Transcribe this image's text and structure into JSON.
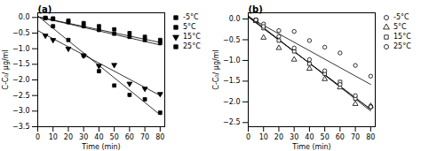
{
  "chart_data": [
    {
      "type": "scatter",
      "title": "(a)",
      "x_label": "Time (min)",
      "y_label": "C-C₀/ μg/ml",
      "x": [
        5,
        10,
        20,
        30,
        40,
        50,
        60,
        70,
        80
      ],
      "series": [
        {
          "name": "-5°C",
          "color": "black",
          "marker": "square",
          "values": [
            -0.02,
            -0.03,
            -0.1,
            -0.18,
            -0.28,
            -0.38,
            -0.5,
            -0.62,
            -0.72
          ],
          "fit": {
            "x": [
              0,
              80
            ],
            "values": [
              0.02,
              -0.8
            ]
          }
        },
        {
          "name": "5°C",
          "color": "black",
          "marker": "square",
          "values": [
            -0.01,
            -0.05,
            -0.15,
            -0.28,
            -0.4,
            -0.52,
            -0.62,
            -0.72,
            -0.82
          ],
          "fit": {
            "x": [
              0,
              80
            ],
            "values": [
              0.02,
              -0.88
            ]
          }
        },
        {
          "name": "15°C",
          "color": "black",
          "marker": "triangle-down",
          "values": [
            -0.58,
            -0.72,
            -1.0,
            -1.22,
            -1.55,
            -1.52,
            -2.12,
            -2.28,
            -2.45
          ],
          "fit": {
            "x": [
              0,
              80
            ],
            "values": [
              -0.42,
              -2.5
            ]
          }
        },
        {
          "name": "25°C",
          "color": "black",
          "marker": "square",
          "values": [
            -0.02,
            -0.28,
            -0.72,
            -1.22,
            -1.72,
            -2.18,
            -2.48,
            -2.62,
            -3.05
          ],
          "fit": {
            "x": [
              0,
              80
            ],
            "values": [
              0.05,
              -3.12
            ]
          }
        }
      ],
      "xlim": [
        0,
        83
      ],
      "xticks": [
        0,
        10,
        20,
        30,
        40,
        50,
        60,
        70,
        80
      ],
      "ylim": [
        -3.5,
        0.15
      ],
      "yticks": [
        {
          "value": 0.0,
          "label": "0.0"
        },
        {
          "value": -0.5,
          "label": "−0.5"
        },
        {
          "value": -1.0,
          "label": "−1.0"
        },
        {
          "value": -1.5,
          "label": "−1.5"
        },
        {
          "value": -2.0,
          "label": "−2.0"
        },
        {
          "value": -2.5,
          "label": "−2.5"
        },
        {
          "value": -3.0,
          "label": "−3.0"
        },
        {
          "value": -3.5,
          "label": "−3.5"
        }
      ],
      "grid": false,
      "legend": "upper right"
    },
    {
      "type": "scatter",
      "title": "(b)",
      "x_label": "Time (min)",
      "y_label": "C-C₀/ μg/ml",
      "x": [
        5,
        10,
        20,
        30,
        40,
        50,
        60,
        70,
        80
      ],
      "series": [
        {
          "name": "-5°C",
          "color": "black",
          "marker": "circle-open",
          "values": [
            -0.02,
            -0.12,
            -0.28,
            -0.3,
            -0.52,
            -0.68,
            -0.82,
            -1.12,
            -1.38
          ],
          "fit": {
            "x": [
              0,
              80
            ],
            "values": [
              0.05,
              -1.58
            ]
          }
        },
        {
          "name": "5°C",
          "color": "black",
          "marker": "triangle-open",
          "values": [
            -0.05,
            -0.45,
            -0.7,
            -0.98,
            -1.2,
            -1.45,
            -1.65,
            -2.05,
            -2.1
          ],
          "fit": {
            "x": [
              0,
              80
            ],
            "values": [
              0.08,
              -2.22
            ]
          }
        },
        {
          "name": "15°C",
          "color": "black",
          "marker": "square-open",
          "values": [
            -0.02,
            -0.22,
            -0.52,
            -0.78,
            -1.08,
            -1.32,
            -1.52,
            -1.92,
            -2.12
          ],
          "fit": {
            "x": [
              0,
              80
            ],
            "values": [
              0.05,
              -2.18
            ]
          }
        },
        {
          "name": "25°C",
          "color": "black",
          "marker": "circle-open",
          "values": [
            -0.02,
            -0.18,
            -0.42,
            -0.7,
            -0.98,
            -1.25,
            -1.58,
            -1.85,
            -2.12
          ],
          "fit": {
            "x": [
              0,
              80
            ],
            "values": [
              0.05,
              -2.18
            ]
          }
        }
      ],
      "xlim": [
        0,
        83
      ],
      "xticks": [
        0,
        10,
        20,
        30,
        40,
        50,
        60,
        70,
        80
      ],
      "ylim": [
        -2.6,
        0.15
      ],
      "yticks": [
        {
          "value": 0.0,
          "label": "0.0"
        },
        {
          "value": -0.5,
          "label": "−0.5"
        },
        {
          "value": -1.0,
          "label": "−1.0"
        },
        {
          "value": -1.5,
          "label": "−1.5"
        },
        {
          "value": -2.0,
          "label": "−2.0"
        },
        {
          "value": -2.5,
          "label": "−2.5"
        }
      ],
      "grid": false,
      "legend": "upper right"
    }
  ]
}
